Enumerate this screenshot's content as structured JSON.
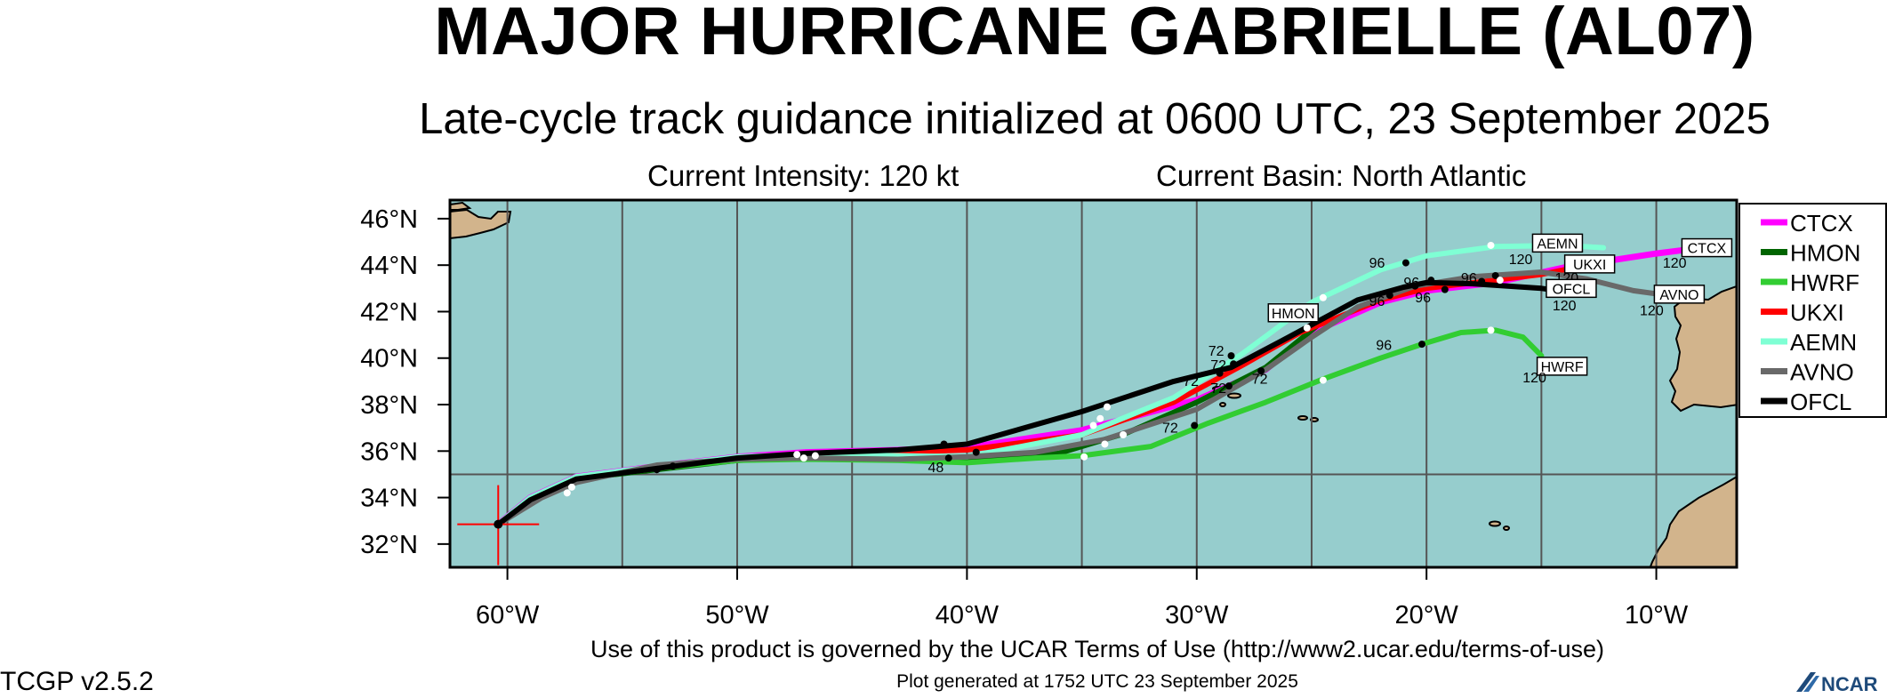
{
  "title": "MAJOR HURRICANE GABRIELLE (AL07)",
  "subtitle": "Late-cycle track guidance initialized at 0600 UTC, 23 September 2025",
  "current_intensity": "Current Intensity: 120 kt",
  "current_basin": "Current Basin: North Atlantic",
  "footer_terms": "Use of this product is governed by the UCAR Terms of Use (http://www2.ucar.edu/terms-of-use)",
  "footer_generated": "Plot generated at 1752 UTC   23 September 2025",
  "version": "TCGP v2.5.2",
  "logo_text": "NCAR",
  "colors": {
    "ocean": "#96cdcd",
    "land": "#d2b48c",
    "grid": "#555555"
  },
  "chart_data": {
    "type": "map",
    "xlim": [
      -62.5,
      -6.5
    ],
    "ylim": [
      31,
      46.8
    ],
    "x_ticks": [
      {
        "lon": -60,
        "label": "60°W"
      },
      {
        "lon": -50,
        "label": "50°W"
      },
      {
        "lon": -40,
        "label": "40°W"
      },
      {
        "lon": -30,
        "label": "30°W"
      },
      {
        "lon": -20,
        "label": "20°W"
      },
      {
        "lon": -10,
        "label": "10°W"
      }
    ],
    "y_ticks": [
      {
        "lat": 32,
        "label": "32°N"
      },
      {
        "lat": 34,
        "label": "34°N"
      },
      {
        "lat": 36,
        "label": "36°N"
      },
      {
        "lat": 38,
        "label": "38°N"
      },
      {
        "lat": 40,
        "label": "40°N"
      },
      {
        "lat": 42,
        "label": "42°N"
      },
      {
        "lat": 44,
        "label": "44°N"
      },
      {
        "lat": 46,
        "label": "46°N"
      }
    ],
    "grid_lons": [
      -60,
      -55,
      -50,
      -45,
      -40,
      -35,
      -30,
      -25,
      -20,
      -15,
      -10
    ],
    "grid_lats": [
      35
    ],
    "current_position": {
      "lon": -60.4,
      "lat": 32.85
    },
    "legend_position": "right",
    "series": [
      {
        "name": "CTCX",
        "color": "#ff00ff",
        "width": 7,
        "points": [
          [
            -60.4,
            32.85
          ],
          [
            -59,
            34
          ],
          [
            -57,
            34.9
          ],
          [
            -53.5,
            35.35
          ],
          [
            -50,
            35.75
          ],
          [
            -47,
            35.95
          ],
          [
            -43,
            36.05
          ],
          [
            -40,
            36.15
          ],
          [
            -35,
            36.9
          ],
          [
            -30,
            38.2
          ],
          [
            -27,
            39.5
          ],
          [
            -25,
            41.1
          ],
          [
            -22,
            42.4
          ],
          [
            -20,
            42.9
          ],
          [
            -17,
            43.25
          ],
          [
            -14,
            43.9
          ],
          [
            -10,
            44.5
          ],
          [
            -8.8,
            44.65
          ]
        ]
      },
      {
        "name": "HMON",
        "color": "#006400",
        "width": 6,
        "points": [
          [
            -60.4,
            32.85
          ],
          [
            -59,
            33.9
          ],
          [
            -57,
            34.8
          ],
          [
            -53.5,
            35.2
          ],
          [
            -50,
            35.6
          ],
          [
            -47,
            35.7
          ],
          [
            -43,
            35.7
          ],
          [
            -40,
            35.65
          ],
          [
            -36,
            35.9
          ],
          [
            -33,
            36.8
          ],
          [
            -30,
            38.1
          ],
          [
            -27,
            39.6
          ],
          [
            -25,
            41.2
          ],
          [
            -24.5,
            41.6
          ]
        ]
      },
      {
        "name": "HWRF",
        "color": "#32cd32",
        "width": 6,
        "points": [
          [
            -60.4,
            32.85
          ],
          [
            -59,
            33.9
          ],
          [
            -57,
            34.8
          ],
          [
            -53.5,
            35.25
          ],
          [
            -50,
            35.6
          ],
          [
            -47,
            35.65
          ],
          [
            -43,
            35.6
          ],
          [
            -40,
            35.5
          ],
          [
            -37,
            35.7
          ],
          [
            -35,
            35.8
          ],
          [
            -32,
            36.2
          ],
          [
            -29.5,
            37.2
          ],
          [
            -27,
            38.1
          ],
          [
            -24.5,
            39.1
          ],
          [
            -22,
            40
          ],
          [
            -20.2,
            40.6
          ],
          [
            -18.5,
            41.1
          ],
          [
            -17,
            41.2
          ],
          [
            -15.8,
            40.9
          ],
          [
            -15,
            40.1
          ]
        ]
      },
      {
        "name": "UKXI",
        "color": "#ff0000",
        "width": 6,
        "points": [
          [
            -60.4,
            32.85
          ],
          [
            -59,
            33.95
          ],
          [
            -57,
            34.85
          ],
          [
            -53.5,
            35.3
          ],
          [
            -50,
            35.7
          ],
          [
            -47,
            35.85
          ],
          [
            -43,
            35.95
          ],
          [
            -40,
            36.05
          ],
          [
            -35,
            36.7
          ],
          [
            -31,
            38.1
          ],
          [
            -28,
            39.7
          ],
          [
            -25.5,
            41.1
          ],
          [
            -22,
            42.5
          ],
          [
            -20,
            43
          ],
          [
            -17.5,
            43.3
          ],
          [
            -15,
            43.6
          ],
          [
            -13,
            44
          ],
          [
            -12.5,
            44.25
          ]
        ]
      },
      {
        "name": "AEMN",
        "color": "#7fffd4",
        "width": 6,
        "points": [
          [
            -60.4,
            32.85
          ],
          [
            -59,
            34
          ],
          [
            -57,
            34.9
          ],
          [
            -53.5,
            35.35
          ],
          [
            -50,
            35.75
          ],
          [
            -47,
            35.85
          ],
          [
            -43,
            35.8
          ],
          [
            -40,
            35.75
          ],
          [
            -35,
            36.7
          ],
          [
            -31,
            38.3
          ],
          [
            -28,
            40.2
          ],
          [
            -25,
            42.4
          ],
          [
            -22,
            43.8
          ],
          [
            -20,
            44.4
          ],
          [
            -17,
            44.8
          ],
          [
            -14,
            44.85
          ],
          [
            -12.3,
            44.75
          ]
        ]
      },
      {
        "name": "AVNO",
        "color": "#696969",
        "width": 6,
        "points": [
          [
            -60.4,
            32.85
          ],
          [
            -58.5,
            34
          ],
          [
            -57,
            34.65
          ],
          [
            -53.5,
            35.4
          ],
          [
            -50,
            35.65
          ],
          [
            -47,
            35.7
          ],
          [
            -43,
            35.65
          ],
          [
            -40,
            35.75
          ],
          [
            -37,
            35.95
          ],
          [
            -34,
            36.5
          ],
          [
            -30,
            37.8
          ],
          [
            -27,
            39.5
          ],
          [
            -25,
            40.9
          ],
          [
            -23,
            42.2
          ],
          [
            -20.5,
            43.1
          ],
          [
            -18,
            43.5
          ],
          [
            -15,
            43.7
          ],
          [
            -13,
            43.4
          ],
          [
            -11,
            42.9
          ],
          [
            -9.5,
            42.7
          ]
        ]
      },
      {
        "name": "OFCL",
        "color": "#000000",
        "width": 6,
        "points": [
          [
            -60.4,
            32.85
          ],
          [
            -59,
            33.9
          ],
          [
            -57,
            34.8
          ],
          [
            -53.5,
            35.25
          ],
          [
            -50,
            35.7
          ],
          [
            -47,
            35.9
          ],
          [
            -43,
            36.05
          ],
          [
            -40,
            36.3
          ],
          [
            -35,
            37.7
          ],
          [
            -31,
            39
          ],
          [
            -28.5,
            39.6
          ],
          [
            -26,
            40.9
          ],
          [
            -23,
            42.5
          ],
          [
            -21,
            43.05
          ],
          [
            -20,
            43.25
          ],
          [
            -18,
            43.2
          ],
          [
            -15,
            43
          ],
          [
            -13.5,
            42.8
          ]
        ]
      }
    ],
    "markers": [
      {
        "lon": -53.5,
        "lat": 35.2,
        "color": "#000000"
      },
      {
        "lon": -52.8,
        "lat": 35.35,
        "color": "#000000"
      },
      {
        "lon": -41,
        "lat": 36.3,
        "color": "#000000"
      },
      {
        "lon": -40.8,
        "lat": 35.7,
        "color": "#000000"
      },
      {
        "lon": -39.6,
        "lat": 35.95,
        "color": "#000000"
      },
      {
        "lon": -28.5,
        "lat": 40.1,
        "color": "#000000"
      },
      {
        "lon": -29,
        "lat": 39.35,
        "color": "#000000"
      },
      {
        "lon": -28.4,
        "lat": 39.75,
        "color": "#000000"
      },
      {
        "lon": -27.2,
        "lat": 39.45,
        "color": "#000000"
      },
      {
        "lon": -28.6,
        "lat": 38.8,
        "color": "#000000"
      },
      {
        "lon": -30.1,
        "lat": 37.1,
        "color": "#000000"
      },
      {
        "lon": -20.9,
        "lat": 44.1,
        "color": "#000000"
      },
      {
        "lon": -21.6,
        "lat": 42.7,
        "color": "#000000"
      },
      {
        "lon": -20.5,
        "lat": 43.1,
        "color": "#000000"
      },
      {
        "lon": -19.8,
        "lat": 43.35,
        "color": "#000000"
      },
      {
        "lon": -19.2,
        "lat": 42.95,
        "color": "#000000"
      },
      {
        "lon": -17.6,
        "lat": 43.3,
        "color": "#000000"
      },
      {
        "lon": -17,
        "lat": 43.55,
        "color": "#000000"
      },
      {
        "lon": -20.2,
        "lat": 40.6,
        "color": "#000000"
      },
      {
        "lon": -57.4,
        "lat": 34.2,
        "color": "#ffffff"
      },
      {
        "lon": -57.2,
        "lat": 34.45,
        "color": "#ffffff"
      },
      {
        "lon": -47.4,
        "lat": 35.85,
        "color": "#ffffff"
      },
      {
        "lon": -47.1,
        "lat": 35.7,
        "color": "#ffffff"
      },
      {
        "lon": -46.6,
        "lat": 35.8,
        "color": "#ffffff"
      },
      {
        "lon": -34.9,
        "lat": 35.75,
        "color": "#ffffff"
      },
      {
        "lon": -34.5,
        "lat": 37.1,
        "color": "#ffffff"
      },
      {
        "lon": -34.2,
        "lat": 37.4,
        "color": "#ffffff"
      },
      {
        "lon": -33.9,
        "lat": 37.9,
        "color": "#ffffff"
      },
      {
        "lon": -33.2,
        "lat": 36.7,
        "color": "#ffffff"
      },
      {
        "lon": -34.0,
        "lat": 36.3,
        "color": "#ffffff"
      },
      {
        "lon": -24.5,
        "lat": 42.6,
        "color": "#ffffff"
      },
      {
        "lon": -25.2,
        "lat": 41.3,
        "color": "#ffffff"
      },
      {
        "lon": -24.5,
        "lat": 39.05,
        "color": "#ffffff"
      },
      {
        "lon": -17.2,
        "lat": 44.85,
        "color": "#ffffff"
      },
      {
        "lon": -16.8,
        "lat": 43.35,
        "color": "#ffffff"
      },
      {
        "lon": -17.2,
        "lat": 41.2,
        "color": "#ffffff"
      }
    ],
    "hour_labels": [
      {
        "text": "72",
        "lon": -29.5,
        "lat": 40.1
      },
      {
        "text": "72",
        "lon": -29.4,
        "lat": 39.5
      },
      {
        "text": "72",
        "lon": -30.6,
        "lat": 38.8
      },
      {
        "text": "72",
        "lon": -29.4,
        "lat": 38.5
      },
      {
        "text": "72",
        "lon": -27.6,
        "lat": 38.9
      },
      {
        "text": "72",
        "lon": -31.5,
        "lat": 36.8
      },
      {
        "text": "96",
        "lon": -22.5,
        "lat": 43.9
      },
      {
        "text": "96",
        "lon": -21,
        "lat": 43.05
      },
      {
        "text": "96",
        "lon": -22.5,
        "lat": 42.25
      },
      {
        "text": "96",
        "lon": -20.5,
        "lat": 42.4
      },
      {
        "text": "96",
        "lon": -18.5,
        "lat": 43.25
      },
      {
        "text": "96",
        "lon": -22.2,
        "lat": 40.35
      },
      {
        "text": "48",
        "lon": -41.7,
        "lat": 35.1
      }
    ],
    "end_labels": [
      {
        "text": "AEMN",
        "lon": -14.3,
        "lat": 44.95,
        "hour": "120",
        "hlon": -15.9,
        "hlat": 44.05
      },
      {
        "text": "UKXI",
        "lon": -12.9,
        "lat": 44.05,
        "hour": "120",
        "hlon": -13.9,
        "hlat": 43.25
      },
      {
        "text": "OFCL",
        "lon": -13.7,
        "lat": 43.0,
        "hour": "120",
        "hlon": -14.0,
        "hlat": 42.05
      },
      {
        "text": "AVNO",
        "lon": -9.0,
        "lat": 42.75,
        "hour": "120",
        "hlon": -10.2,
        "hlat": 41.85
      },
      {
        "text": "CTCX",
        "lon": -7.8,
        "lat": 44.75,
        "hour": "120",
        "hlon": -9.2,
        "hlat": 43.9
      },
      {
        "text": "HMON",
        "lon": -25.8,
        "lat": 41.95,
        "hour": "",
        "hlon": 0,
        "hlat": 0
      },
      {
        "text": "HWRF",
        "lon": -14.1,
        "lat": 39.65,
        "hour": "120",
        "hlon": -15.3,
        "hlat": 38.95
      }
    ]
  }
}
